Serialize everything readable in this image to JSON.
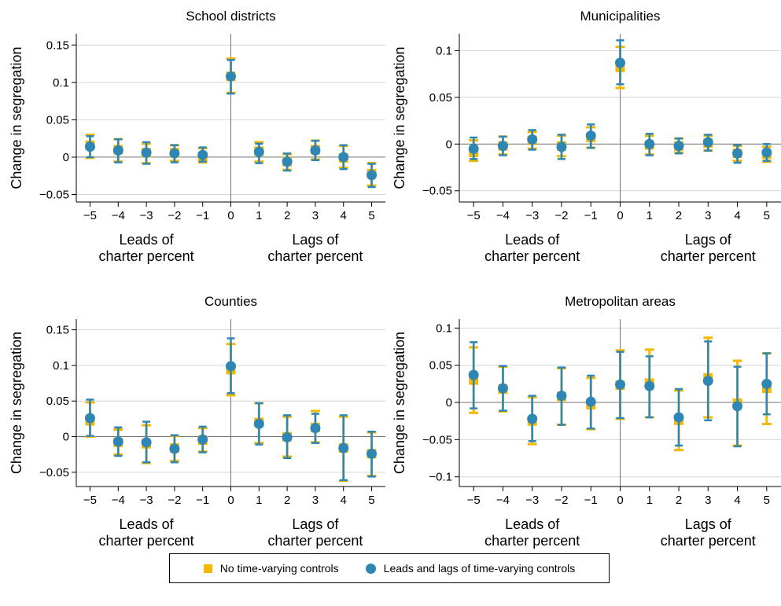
{
  "chart_data": [
    {
      "type": "scatter",
      "title": "School districts",
      "ylabel": "Change in segregation",
      "xlabel_left": "Leads of\ncharter percent",
      "xlabel_right": "Lags of\ncharter percent",
      "x": [
        -5,
        -4,
        -3,
        -2,
        -1,
        0,
        1,
        2,
        3,
        4,
        5
      ],
      "xticks": [
        "−5",
        "−4",
        "−3",
        "−2",
        "−1",
        "0",
        "1",
        "2",
        "3",
        "4",
        "5"
      ],
      "ylim": [
        -0.06,
        0.165
      ],
      "yticks": [
        -0.05,
        0,
        0.05,
        0.1,
        0.15
      ],
      "ytick_labels": [
        "−0.05",
        "0",
        "0.05",
        "0.1",
        "0.15"
      ],
      "series": [
        {
          "name": "No time-varying controls",
          "values": [
            0.016,
            0.01,
            0.006,
            0.006,
            0.001,
            0.108,
            0.008,
            -0.006,
            0.01,
            -0.001,
            -0.022
          ],
          "lower": [
            -0.001,
            -0.006,
            -0.008,
            -0.005,
            -0.007,
            0.086,
            -0.006,
            -0.017,
            -0.003,
            -0.014,
            -0.038
          ],
          "upper": [
            0.03,
            0.024,
            0.018,
            0.016,
            0.012,
            0.132,
            0.02,
            0.004,
            0.022,
            0.015,
            -0.008
          ]
        },
        {
          "name": "Leads and lags of time-varying controls",
          "values": [
            0.014,
            0.009,
            0.006,
            0.005,
            0.003,
            0.108,
            0.007,
            -0.006,
            0.009,
            0.0,
            -0.024
          ],
          "lower": [
            0.0,
            -0.007,
            -0.009,
            -0.007,
            -0.006,
            0.085,
            -0.008,
            -0.018,
            -0.004,
            -0.016,
            -0.04
          ],
          "upper": [
            0.028,
            0.024,
            0.02,
            0.016,
            0.013,
            0.13,
            0.018,
            0.005,
            0.022,
            0.016,
            -0.009
          ]
        }
      ]
    },
    {
      "type": "scatter",
      "title": "Municipalities",
      "ylabel": "Change in segregation",
      "xlabel_left": "Leads of\ncharter percent",
      "xlabel_right": "Lags of\ncharter percent",
      "x": [
        -5,
        -4,
        -3,
        -2,
        -1,
        0,
        1,
        2,
        3,
        4,
        5
      ],
      "xticks": [
        "−5",
        "−4",
        "−3",
        "−2",
        "−1",
        "0",
        "1",
        "2",
        "3",
        "4",
        "5"
      ],
      "ylim": [
        -0.062,
        0.118
      ],
      "yticks": [
        -0.05,
        0,
        0.05,
        0.1
      ],
      "ytick_labels": [
        "−0.05",
        "0",
        "0.05",
        "0.1"
      ],
      "series": [
        {
          "name": "No time-varying controls",
          "values": [
            -0.009,
            -0.002,
            0.004,
            -0.002,
            0.007,
            0.082,
            -0.001,
            -0.002,
            0.001,
            -0.01,
            -0.011
          ],
          "lower": [
            -0.018,
            -0.011,
            -0.005,
            -0.013,
            -0.004,
            0.06,
            -0.011,
            -0.009,
            -0.007,
            -0.018,
            -0.019
          ],
          "upper": [
            0.004,
            0.008,
            0.013,
            0.009,
            0.018,
            0.104,
            0.009,
            0.006,
            0.009,
            -0.002,
            -0.003
          ]
        },
        {
          "name": "Leads and lags of time-varying controls",
          "values": [
            -0.005,
            -0.002,
            0.005,
            -0.003,
            0.009,
            0.087,
            0.0,
            -0.002,
            0.002,
            -0.01,
            -0.009
          ],
          "lower": [
            -0.016,
            -0.012,
            -0.006,
            -0.016,
            -0.004,
            0.064,
            -0.012,
            -0.01,
            -0.007,
            -0.02,
            -0.018
          ],
          "upper": [
            0.007,
            0.008,
            0.015,
            0.01,
            0.021,
            0.111,
            0.011,
            0.006,
            0.01,
            -0.001,
            0.0
          ]
        }
      ]
    },
    {
      "type": "scatter",
      "title": "Counties",
      "ylabel": "Change in segregation",
      "xlabel_left": "Leads of\ncharter percent",
      "xlabel_right": "Lags of\ncharter percent",
      "x": [
        -5,
        -4,
        -3,
        -2,
        -1,
        0,
        1,
        2,
        3,
        4,
        5
      ],
      "xticks": [
        "−5",
        "−4",
        "−3",
        "−2",
        "−1",
        "0",
        "1",
        "2",
        "3",
        "4",
        "5"
      ],
      "ylim": [
        -0.07,
        0.165
      ],
      "yticks": [
        -0.05,
        0,
        0.05,
        0.1,
        0.15
      ],
      "ytick_labels": [
        "−0.05",
        "0",
        "0.05",
        "0.1",
        "0.15"
      ],
      "series": [
        {
          "name": "No time-varying controls",
          "values": [
            0.022,
            -0.008,
            -0.01,
            -0.016,
            -0.005,
            0.094,
            0.02,
            0.0,
            0.013,
            -0.016,
            -0.024
          ],
          "lower": [
            0.0,
            -0.025,
            -0.037,
            -0.034,
            -0.021,
            0.058,
            -0.009,
            -0.028,
            -0.008,
            -0.062,
            -0.055
          ],
          "upper": [
            0.048,
            0.01,
            0.016,
            0.001,
            0.012,
            0.13,
            0.047,
            0.028,
            0.036,
            0.028,
            0.006
          ]
        },
        {
          "name": "Leads and lags of time-varying controls",
          "values": [
            0.026,
            -0.007,
            -0.008,
            -0.017,
            -0.004,
            0.099,
            0.018,
            -0.001,
            0.012,
            -0.016,
            -0.024
          ],
          "lower": [
            0.001,
            -0.027,
            -0.036,
            -0.036,
            -0.022,
            0.061,
            -0.011,
            -0.03,
            -0.009,
            -0.061,
            -0.056
          ],
          "upper": [
            0.052,
            0.013,
            0.021,
            0.002,
            0.014,
            0.138,
            0.047,
            0.03,
            0.032,
            0.03,
            0.007
          ]
        }
      ]
    },
    {
      "type": "scatter",
      "title": "Metropolitan areas",
      "ylabel": "Change in segregation",
      "xlabel_left": "Leads of\ncharter percent",
      "xlabel_right": "Lags of\ncharter percent",
      "x": [
        -5,
        -4,
        -3,
        -2,
        -1,
        0,
        1,
        2,
        3,
        4,
        5
      ],
      "xticks": [
        "−5",
        "−4",
        "−3",
        "−2",
        "−1",
        "0",
        "1",
        "2",
        "3",
        "4",
        "5"
      ],
      "ylim": [
        -0.113,
        0.112
      ],
      "yticks": [
        -0.1,
        -0.05,
        0,
        0.05,
        0.1
      ],
      "ytick_labels": [
        "−0.1",
        "−0.05",
        "0",
        "0.05",
        "0.1"
      ],
      "series": [
        {
          "name": "No time-varying controls",
          "values": [
            0.03,
            0.018,
            -0.025,
            0.008,
            -0.003,
            0.023,
            0.026,
            -0.024,
            0.033,
            -0.001,
            0.019
          ],
          "lower": [
            -0.014,
            -0.012,
            -0.056,
            -0.03,
            -0.036,
            -0.022,
            -0.02,
            -0.064,
            -0.02,
            -0.058,
            -0.029
          ],
          "upper": [
            0.074,
            0.048,
            0.007,
            0.046,
            0.033,
            0.07,
            0.071,
            0.016,
            0.087,
            0.056,
            0.066
          ]
        },
        {
          "name": "Leads and lags of time-varying controls",
          "values": [
            0.037,
            0.019,
            -0.022,
            0.009,
            0.001,
            0.024,
            0.022,
            -0.02,
            0.029,
            -0.005,
            0.025
          ],
          "lower": [
            -0.008,
            -0.011,
            -0.052,
            -0.03,
            -0.035,
            -0.021,
            -0.02,
            -0.058,
            -0.024,
            -0.059,
            -0.016
          ],
          "upper": [
            0.081,
            0.049,
            0.009,
            0.047,
            0.036,
            0.068,
            0.062,
            0.018,
            0.082,
            0.048,
            0.066
          ]
        }
      ]
    }
  ],
  "legend": {
    "items": [
      {
        "label": "No time-varying controls",
        "color": "#F5B800",
        "marker": "square"
      },
      {
        "label": "Leads and lags of time-varying controls",
        "color": "#2E86B5",
        "marker": "circle"
      }
    ]
  }
}
